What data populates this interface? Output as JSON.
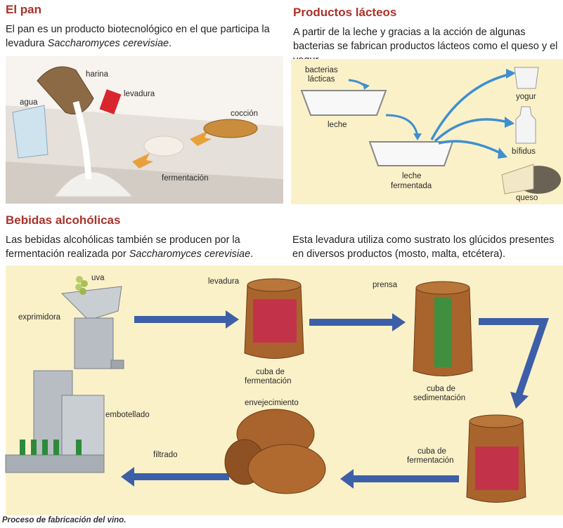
{
  "bread": {
    "title": "El pan",
    "text_before": "El pan es un producto biotecnológico en el que participa la levadura ",
    "text_italic": "Saccharomyces cerevisiae",
    "text_after": ".",
    "labels": {
      "harina": "harina",
      "agua": "agua",
      "levadura": "levadura",
      "coccion": "cocción",
      "fermentacion": "fermentación"
    }
  },
  "dairy": {
    "title": "Productos lácteos",
    "text": "A partir de la leche y gracias a la acción de algunas bacterias se fabrican productos lácteos como el queso y el yogur.",
    "labels": {
      "bacterias": "bacterias",
      "lacticas": "lácticas",
      "leche": "leche",
      "leche_fermentada_1": "leche",
      "leche_fermentada_2": "fermentada",
      "yogur": "yogur",
      "bifidus": "bífidus",
      "queso": "queso"
    }
  },
  "drinks": {
    "title": "Bebidas alcohólicas",
    "text_left_before": "Las bebidas alcohólicas también se producen por la fermentación realizada por ",
    "text_left_italic": "Saccharomyces cerevisiae",
    "text_left_after": ".",
    "text_right": "Esta levadura utiliza como sustrato los glúcidos presentes en diversos productos (mosto, malta, etcétera).",
    "labels": {
      "uva": "uva",
      "exprimidora": "exprimidora",
      "levadura": "levadura",
      "prensa": "prensa",
      "cuba_fermentacion_1a": "cuba de",
      "cuba_fermentacion_1b": "fermentación",
      "cuba_sedimentacion_a": "cuba de",
      "cuba_sedimentacion_b": "sedimentación",
      "cuba_fermentacion_2a": "cuba de",
      "cuba_fermentacion_2b": "fermentación",
      "envejecimiento": "envejecimiento",
      "embotellado": "embotellado",
      "filtrado": "filtrado"
    },
    "caption": "Proceso de fabricación del vino."
  },
  "colors": {
    "heading": "#a9322a",
    "panel": "#fbf1c9",
    "arrow_blue": "#3d5fa8",
    "wine": "#c2334a",
    "wood": "#a8642c"
  }
}
